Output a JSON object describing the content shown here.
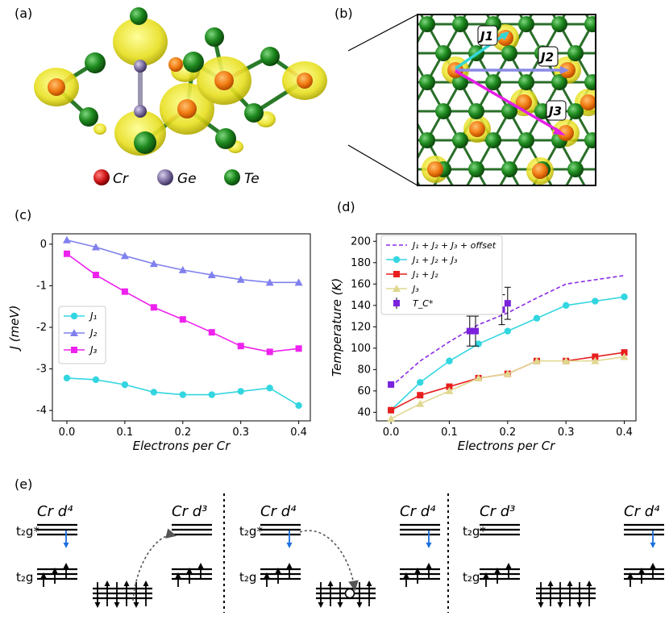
{
  "panels": {
    "a": {
      "label": "(a)",
      "legend": [
        {
          "element": "Cr",
          "color": "#d11a1a"
        },
        {
          "element": "Ge",
          "color": "#7d6fa0"
        },
        {
          "element": "Te",
          "color": "#1e7d1e"
        }
      ]
    },
    "b": {
      "label": "(b)",
      "arrows": [
        {
          "name": "J1",
          "color": "#33d6d6"
        },
        {
          "name": "J2",
          "color": "#8a8ae6"
        },
        {
          "name": "J3",
          "color": "#e61ee6"
        }
      ]
    },
    "c": {
      "label": "(c)"
    },
    "d": {
      "label": "(d)"
    },
    "e": {
      "label": "(e)",
      "groups": [
        {
          "left": "Cr d⁴",
          "right": "Cr d³"
        },
        {
          "left": "Cr d⁴",
          "right": "Cr d⁴"
        },
        {
          "left": "Cr d³",
          "right": "Cr d⁴"
        }
      ],
      "t2g_star": "t₂g*",
      "t2g": "t₂g"
    }
  },
  "chart_data": [
    {
      "type": "line",
      "panel": "c",
      "xlabel": "Electrons per Cr",
      "ylabel": "J (meV)",
      "xlim": [
        -0.025,
        0.42
      ],
      "ylim": [
        -4.25,
        0.25
      ],
      "xticks": [
        "0.0",
        "0.1",
        "0.2",
        "0.3",
        "0.4"
      ],
      "yticks": [
        "0",
        "-1",
        "-2",
        "-3",
        "-4"
      ],
      "legend_position": "center-left",
      "grid": false,
      "x": [
        0.0,
        0.05,
        0.1,
        0.15,
        0.2,
        0.25,
        0.3,
        0.35,
        0.4
      ],
      "series": [
        {
          "name": "J₁",
          "color": "#33d6e0",
          "marker": "circle",
          "values": [
            -3.22,
            -3.26,
            -3.38,
            -3.56,
            -3.62,
            -3.62,
            -3.54,
            -3.46,
            -3.88
          ]
        },
        {
          "name": "J₂",
          "color": "#8080ee",
          "marker": "triangle",
          "values": [
            0.1,
            -0.07,
            -0.28,
            -0.47,
            -0.62,
            -0.74,
            -0.85,
            -0.92,
            -0.92
          ]
        },
        {
          "name": "J₃",
          "color": "#ee22ee",
          "marker": "square",
          "values": [
            -0.23,
            -0.74,
            -1.14,
            -1.52,
            -1.81,
            -2.12,
            -2.45,
            -2.59,
            -2.51
          ]
        }
      ]
    },
    {
      "type": "line",
      "panel": "d",
      "xlabel": "Electrons per Cr",
      "ylabel": "Temperature (K)",
      "xlim": [
        -0.025,
        0.42
      ],
      "ylim": [
        32,
        207
      ],
      "xticks": [
        "0.0",
        "0.1",
        "0.2",
        "0.3",
        "0.4"
      ],
      "yticks": [
        "40",
        "60",
        "80",
        "100",
        "120",
        "140",
        "160",
        "180",
        "200"
      ],
      "legend_position": "top-left",
      "grid": false,
      "x": [
        0.0,
        0.05,
        0.1,
        0.15,
        0.2,
        0.25,
        0.3,
        0.35,
        0.4
      ],
      "series": [
        {
          "name": "J₁ + J₂ + J₃ + offset",
          "color": "#8a2be2",
          "style": "dashed",
          "values": [
            64,
            88,
            106,
            122,
            133,
            147,
            160,
            164,
            168
          ]
        },
        {
          "name": "J₁ + J₂ + J₃",
          "color": "#33d6e0",
          "marker": "circle",
          "values": [
            42,
            68,
            88,
            104,
            116,
            128,
            140,
            144,
            148
          ]
        },
        {
          "name": "J₁ + J₂",
          "color": "#e81e1e",
          "marker": "square",
          "values": [
            42,
            56,
            64,
            72,
            76,
            88,
            88,
            92,
            96
          ]
        },
        {
          "name": "J₃",
          "color": "#e0d890",
          "marker": "triangle",
          "values": [
            34,
            48,
            60,
            72,
            76,
            88,
            88,
            88,
            92
          ]
        }
      ],
      "measured": {
        "name": "T_C*",
        "color": "#7b22dd",
        "points": [
          {
            "x": 0.0,
            "y": 66,
            "err": 2
          },
          {
            "x": 0.135,
            "y": 116,
            "err": 14
          },
          {
            "x": 0.145,
            "y": 116,
            "err": 14
          },
          {
            "x": 0.19,
            "y": 136,
            "err": 14
          },
          {
            "x": 0.2,
            "y": 142,
            "err": 15
          }
        ]
      }
    }
  ]
}
